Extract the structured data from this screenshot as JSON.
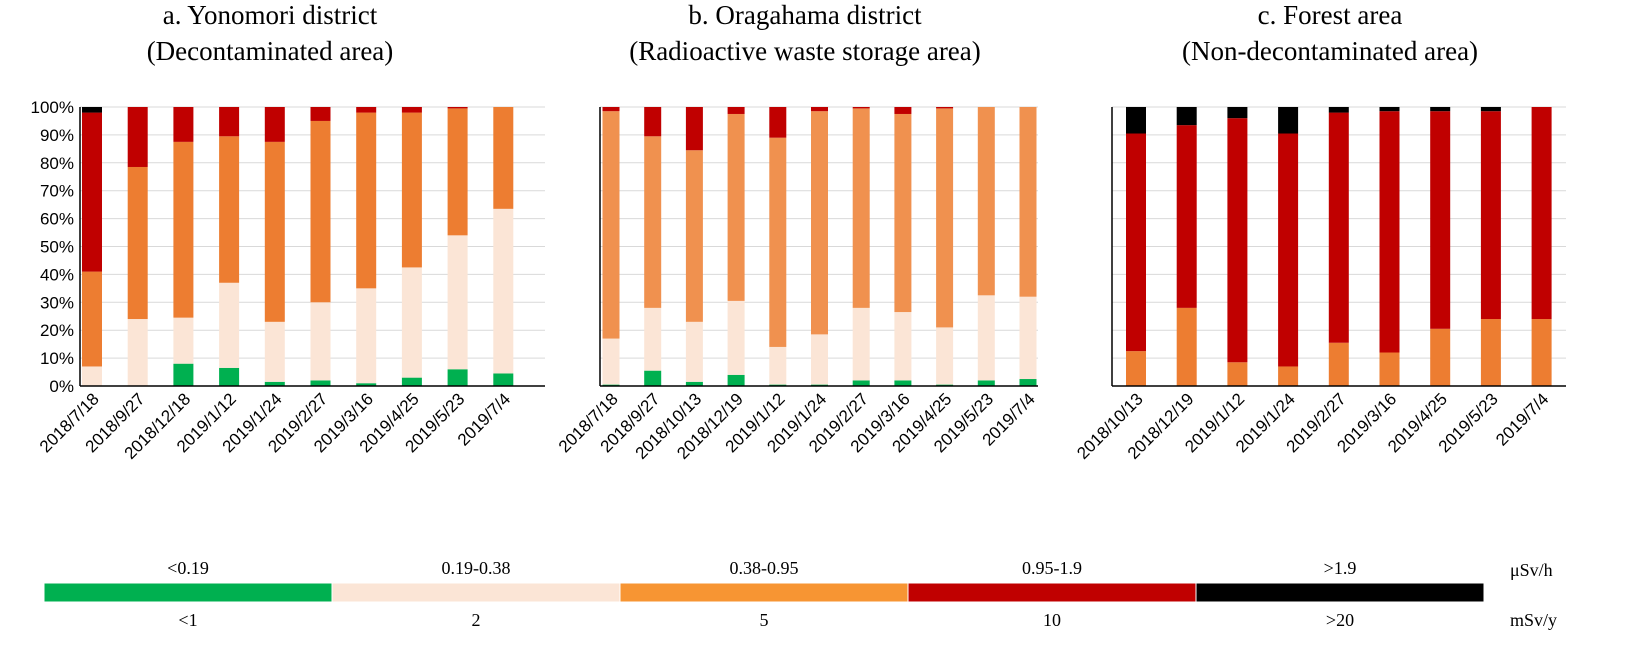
{
  "colors": {
    "lt_0_19": "#00b050",
    "r_0_19_0_38": "#fbe5d6",
    "r_0_38_0_95": "#ed7d31",
    "r_0_38_0_95_b": "#f0914f",
    "r_0_95_1_9": "#c00000",
    "gt_1_9": "#000000",
    "legend_orange": "#f79533",
    "axis": "#000000",
    "grid": "#d9d9d9"
  },
  "legend": {
    "unit_top": "μSv/h",
    "unit_bottom": "mSv/y",
    "items": [
      {
        "top": "<0.19",
        "bottom": "<1",
        "color": "#00b050"
      },
      {
        "top": "0.19-0.38",
        "bottom": "2",
        "color": "#fbe5d6"
      },
      {
        "top": "0.38-0.95",
        "bottom": "5",
        "color": "#f79533"
      },
      {
        "top": "0.95-1.9",
        "bottom": "10",
        "color": "#c00000"
      },
      {
        "top": ">1.9",
        "bottom": ">20",
        "color": "#000000"
      }
    ]
  },
  "chart_data": [
    {
      "type": "bar",
      "stacked": true,
      "title": "a. Yonomori district",
      "subtitle": "(Decontaminated area)",
      "ylim": [
        0,
        100
      ],
      "yticks": [
        "0%",
        "10%",
        "20%",
        "30%",
        "40%",
        "50%",
        "60%",
        "70%",
        "80%",
        "90%",
        "100%"
      ],
      "grid": true,
      "categories": [
        "2018/7/18",
        "2018/9/27",
        "2018/12/18",
        "2019/1/12",
        "2019/1/24",
        "2019/2/27",
        "2019/3/16",
        "2019/4/25",
        "2019/5/23",
        "2019/7/4"
      ],
      "series": [
        {
          "level": "<0.19",
          "color": "#00b050",
          "values": [
            0,
            0,
            8,
            6.5,
            1.5,
            2,
            1,
            3,
            6,
            4.5
          ]
        },
        {
          "level": "0.19-0.38",
          "color": "#fbe5d6",
          "values": [
            7,
            24,
            16.5,
            30.5,
            21.5,
            28,
            34,
            39.5,
            48,
            59
          ]
        },
        {
          "level": "0.38-0.95",
          "color": "#ed7d31",
          "values": [
            34,
            54.5,
            63,
            52.5,
            64.5,
            65,
            63,
            55.5,
            45.5,
            36.5
          ]
        },
        {
          "level": "0.95-1.9",
          "color": "#c00000",
          "values": [
            57,
            21.5,
            12.5,
            10.5,
            12.5,
            5,
            2,
            2,
            0.5,
            0
          ]
        },
        {
          "level": ">1.9",
          "color": "#000000",
          "values": [
            2,
            0,
            0,
            0,
            0,
            0,
            0,
            0,
            0,
            0
          ]
        }
      ]
    },
    {
      "type": "bar",
      "stacked": true,
      "title": "b. Oragahama district",
      "subtitle": "(Radioactive waste storage area)",
      "ylim": [
        0,
        100
      ],
      "grid": true,
      "categories": [
        "2018/7/18",
        "2018/9/27",
        "2018/10/13",
        "2018/12/19",
        "2019/1/12",
        "2019/1/24",
        "2019/2/27",
        "2019/3/16",
        "2019/4/25",
        "2019/5/23",
        "2019/7/4"
      ],
      "series": [
        {
          "level": "<0.19",
          "color": "#00b050",
          "values": [
            0.5,
            5.5,
            1.5,
            4,
            0.5,
            0.5,
            2,
            2,
            0.5,
            2,
            2.5
          ]
        },
        {
          "level": "0.19-0.38",
          "color": "#fbe5d6",
          "values": [
            16.5,
            22.5,
            21.5,
            26.5,
            13.5,
            18,
            26,
            24.5,
            20.5,
            30.5,
            29.5
          ]
        },
        {
          "level": "0.38-0.95",
          "color": "#f0914f",
          "values": [
            81.5,
            61.5,
            61.5,
            67,
            75,
            80,
            71.5,
            71,
            78.5,
            67.5,
            68
          ]
        },
        {
          "level": "0.95-1.9",
          "color": "#c00000",
          "values": [
            1.5,
            10.5,
            15.5,
            2.5,
            11,
            1.5,
            0.5,
            2.5,
            0.5,
            0,
            0
          ]
        },
        {
          "level": ">1.9",
          "color": "#000000",
          "values": [
            0,
            0,
            0,
            0,
            0,
            0,
            0,
            0,
            0,
            0,
            0
          ]
        }
      ]
    },
    {
      "type": "bar",
      "stacked": true,
      "title": "c. Forest area",
      "subtitle": "(Non-decontaminated area)",
      "ylim": [
        0,
        100
      ],
      "grid": true,
      "categories": [
        "2018/10/13",
        "2018/12/19",
        "2019/1/12",
        "2019/1/24",
        "2019/2/27",
        "2019/3/16",
        "2019/4/25",
        "2019/5/23",
        "2019/7/4"
      ],
      "series": [
        {
          "level": "<0.19",
          "color": "#00b050",
          "values": [
            0,
            0,
            0,
            0,
            0,
            0,
            0,
            0,
            0
          ]
        },
        {
          "level": "0.19-0.38",
          "color": "#fbe5d6",
          "values": [
            0,
            0,
            0,
            0,
            0,
            0,
            0,
            0,
            0
          ]
        },
        {
          "level": "0.38-0.95",
          "color": "#ed7d31",
          "values": [
            12.5,
            28,
            8.5,
            7,
            15.5,
            12,
            20.5,
            24,
            24
          ]
        },
        {
          "level": "0.95-1.9",
          "color": "#c00000",
          "values": [
            78,
            65.5,
            87.5,
            83.5,
            82.5,
            86.5,
            78,
            74.5,
            76
          ]
        },
        {
          "level": ">1.9",
          "color": "#000000",
          "values": [
            9.5,
            6.5,
            4,
            9.5,
            2,
            1.5,
            1.5,
            1.5,
            0
          ]
        }
      ]
    }
  ]
}
